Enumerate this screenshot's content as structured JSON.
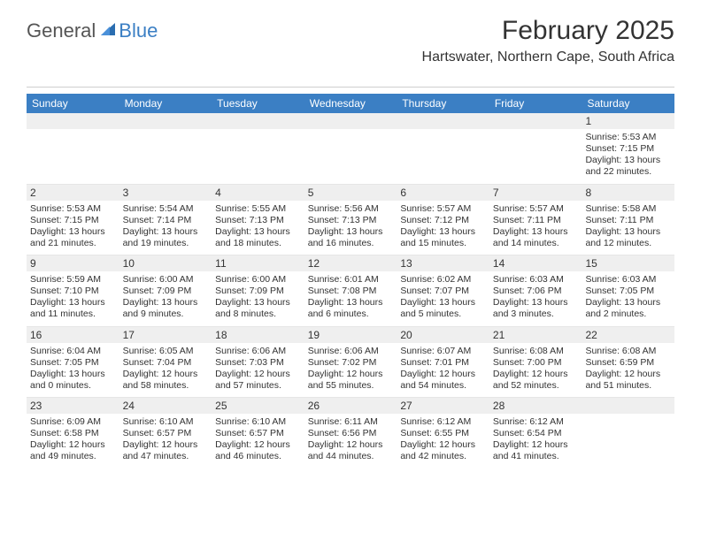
{
  "brand": {
    "part1": "General",
    "part2": "Blue"
  },
  "title": "February 2025",
  "location": "Hartswater, Northern Cape, South Africa",
  "colors": {
    "header_bar": "#3b7fc4",
    "header_text": "#ffffff",
    "daynum_bg": "#efefef",
    "border": "#e6e6e6",
    "text": "#333333"
  },
  "typography": {
    "title_fontsize": 30,
    "location_fontsize": 16,
    "dayheader_fontsize": 12,
    "daynum_fontsize": 12,
    "body_fontsize": 10.5
  },
  "calendar": {
    "type": "table",
    "columns": [
      "Sunday",
      "Monday",
      "Tuesday",
      "Wednesday",
      "Thursday",
      "Friday",
      "Saturday"
    ],
    "weeks": [
      [
        null,
        null,
        null,
        null,
        null,
        null,
        {
          "n": "1",
          "sr": "Sunrise: 5:53 AM",
          "ss": "Sunset: 7:15 PM",
          "dl": "Daylight: 13 hours and 22 minutes."
        }
      ],
      [
        {
          "n": "2",
          "sr": "Sunrise: 5:53 AM",
          "ss": "Sunset: 7:15 PM",
          "dl": "Daylight: 13 hours and 21 minutes."
        },
        {
          "n": "3",
          "sr": "Sunrise: 5:54 AM",
          "ss": "Sunset: 7:14 PM",
          "dl": "Daylight: 13 hours and 19 minutes."
        },
        {
          "n": "4",
          "sr": "Sunrise: 5:55 AM",
          "ss": "Sunset: 7:13 PM",
          "dl": "Daylight: 13 hours and 18 minutes."
        },
        {
          "n": "5",
          "sr": "Sunrise: 5:56 AM",
          "ss": "Sunset: 7:13 PM",
          "dl": "Daylight: 13 hours and 16 minutes."
        },
        {
          "n": "6",
          "sr": "Sunrise: 5:57 AM",
          "ss": "Sunset: 7:12 PM",
          "dl": "Daylight: 13 hours and 15 minutes."
        },
        {
          "n": "7",
          "sr": "Sunrise: 5:57 AM",
          "ss": "Sunset: 7:11 PM",
          "dl": "Daylight: 13 hours and 14 minutes."
        },
        {
          "n": "8",
          "sr": "Sunrise: 5:58 AM",
          "ss": "Sunset: 7:11 PM",
          "dl": "Daylight: 13 hours and 12 minutes."
        }
      ],
      [
        {
          "n": "9",
          "sr": "Sunrise: 5:59 AM",
          "ss": "Sunset: 7:10 PM",
          "dl": "Daylight: 13 hours and 11 minutes."
        },
        {
          "n": "10",
          "sr": "Sunrise: 6:00 AM",
          "ss": "Sunset: 7:09 PM",
          "dl": "Daylight: 13 hours and 9 minutes."
        },
        {
          "n": "11",
          "sr": "Sunrise: 6:00 AM",
          "ss": "Sunset: 7:09 PM",
          "dl": "Daylight: 13 hours and 8 minutes."
        },
        {
          "n": "12",
          "sr": "Sunrise: 6:01 AM",
          "ss": "Sunset: 7:08 PM",
          "dl": "Daylight: 13 hours and 6 minutes."
        },
        {
          "n": "13",
          "sr": "Sunrise: 6:02 AM",
          "ss": "Sunset: 7:07 PM",
          "dl": "Daylight: 13 hours and 5 minutes."
        },
        {
          "n": "14",
          "sr": "Sunrise: 6:03 AM",
          "ss": "Sunset: 7:06 PM",
          "dl": "Daylight: 13 hours and 3 minutes."
        },
        {
          "n": "15",
          "sr": "Sunrise: 6:03 AM",
          "ss": "Sunset: 7:05 PM",
          "dl": "Daylight: 13 hours and 2 minutes."
        }
      ],
      [
        {
          "n": "16",
          "sr": "Sunrise: 6:04 AM",
          "ss": "Sunset: 7:05 PM",
          "dl": "Daylight: 13 hours and 0 minutes."
        },
        {
          "n": "17",
          "sr": "Sunrise: 6:05 AM",
          "ss": "Sunset: 7:04 PM",
          "dl": "Daylight: 12 hours and 58 minutes."
        },
        {
          "n": "18",
          "sr": "Sunrise: 6:06 AM",
          "ss": "Sunset: 7:03 PM",
          "dl": "Daylight: 12 hours and 57 minutes."
        },
        {
          "n": "19",
          "sr": "Sunrise: 6:06 AM",
          "ss": "Sunset: 7:02 PM",
          "dl": "Daylight: 12 hours and 55 minutes."
        },
        {
          "n": "20",
          "sr": "Sunrise: 6:07 AM",
          "ss": "Sunset: 7:01 PM",
          "dl": "Daylight: 12 hours and 54 minutes."
        },
        {
          "n": "21",
          "sr": "Sunrise: 6:08 AM",
          "ss": "Sunset: 7:00 PM",
          "dl": "Daylight: 12 hours and 52 minutes."
        },
        {
          "n": "22",
          "sr": "Sunrise: 6:08 AM",
          "ss": "Sunset: 6:59 PM",
          "dl": "Daylight: 12 hours and 51 minutes."
        }
      ],
      [
        {
          "n": "23",
          "sr": "Sunrise: 6:09 AM",
          "ss": "Sunset: 6:58 PM",
          "dl": "Daylight: 12 hours and 49 minutes."
        },
        {
          "n": "24",
          "sr": "Sunrise: 6:10 AM",
          "ss": "Sunset: 6:57 PM",
          "dl": "Daylight: 12 hours and 47 minutes."
        },
        {
          "n": "25",
          "sr": "Sunrise: 6:10 AM",
          "ss": "Sunset: 6:57 PM",
          "dl": "Daylight: 12 hours and 46 minutes."
        },
        {
          "n": "26",
          "sr": "Sunrise: 6:11 AM",
          "ss": "Sunset: 6:56 PM",
          "dl": "Daylight: 12 hours and 44 minutes."
        },
        {
          "n": "27",
          "sr": "Sunrise: 6:12 AM",
          "ss": "Sunset: 6:55 PM",
          "dl": "Daylight: 12 hours and 42 minutes."
        },
        {
          "n": "28",
          "sr": "Sunrise: 6:12 AM",
          "ss": "Sunset: 6:54 PM",
          "dl": "Daylight: 12 hours and 41 minutes."
        },
        null
      ]
    ]
  }
}
